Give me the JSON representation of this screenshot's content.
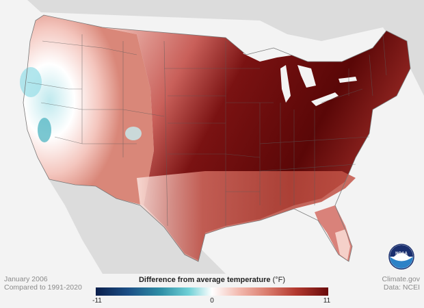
{
  "map": {
    "title": "Difference from average temperature",
    "unit": "(°F)",
    "period": "January 2006",
    "baseline": "Compared to 1991-2020",
    "credit": "Climate.gov",
    "data_source": "Data: NCEI",
    "scale": {
      "min": "-11",
      "mid": "0",
      "max": "11"
    },
    "colors": {
      "background": "#f3f3f3",
      "land_other": "#dcdcdc",
      "cold_extreme": "#0b1f4c",
      "neutral": "#ffffff",
      "warm_extreme": "#6a0b0b",
      "state_border": "#555555"
    },
    "logo": "NOAA"
  }
}
